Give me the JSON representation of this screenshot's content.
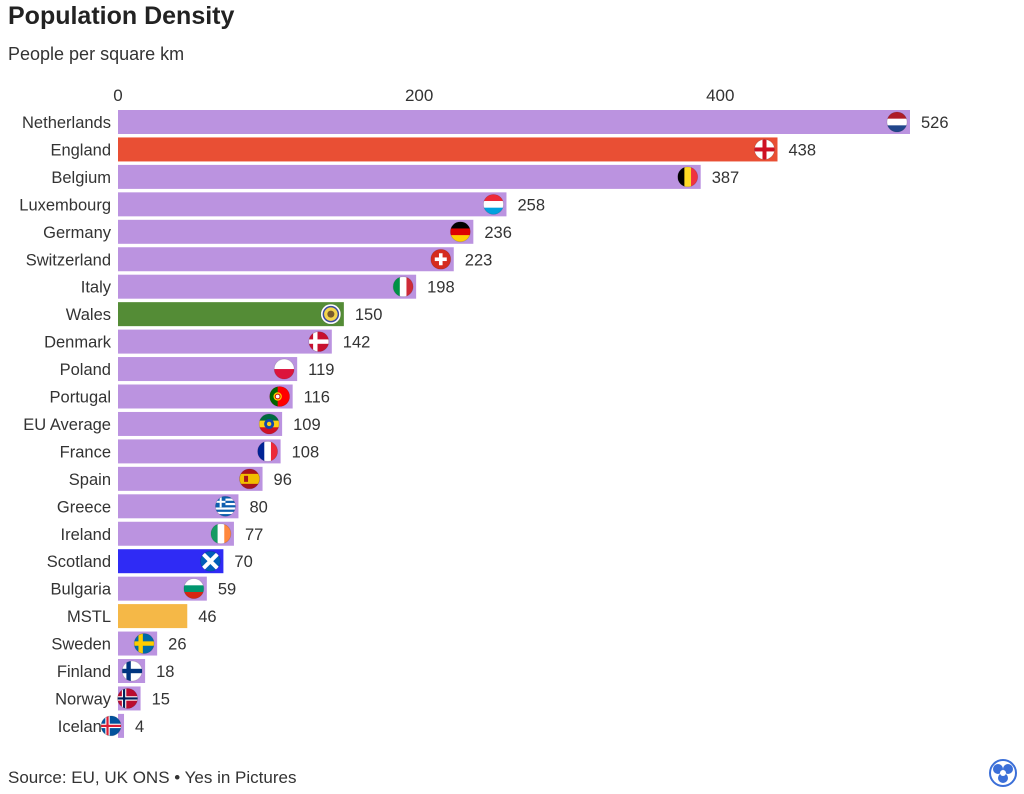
{
  "title": "Population Density",
  "subtitle": "People per square km",
  "footer": "Source: EU, UK ONS • Yes in Pictures",
  "colors": {
    "default": "#bb93e0",
    "England": "#e94f34",
    "Wales": "#548c36",
    "Scotland": "#2f2bf5",
    "MSTL": "#f5b847"
  },
  "chart_data": {
    "type": "bar",
    "orientation": "horizontal",
    "title": "Population Density",
    "subtitle": "People per square km",
    "xlabel": "",
    "ylabel": "",
    "xlim": [
      0,
      526
    ],
    "xticks": [
      0,
      200,
      400
    ],
    "grid": false,
    "categories": [
      "Netherlands",
      "England",
      "Belgium",
      "Luxembourg",
      "Germany",
      "Switzerland",
      "Italy",
      "Wales",
      "Denmark",
      "Poland",
      "Portugal",
      "EU Average",
      "France",
      "Spain",
      "Greece",
      "Ireland",
      "Scotland",
      "Bulgaria",
      "MSTL",
      "Sweden",
      "Finland",
      "Norway",
      "Iceland"
    ],
    "values": [
      526,
      438,
      387,
      258,
      236,
      223,
      198,
      150,
      142,
      119,
      116,
      109,
      108,
      96,
      80,
      77,
      70,
      59,
      46,
      26,
      18,
      15,
      4
    ],
    "flag_icons": [
      "netherlands-flag-icon",
      "england-flag-icon",
      "belgium-flag-icon",
      "luxembourg-flag-icon",
      "germany-flag-icon",
      "switzerland-flag-icon",
      "italy-flag-icon",
      "wales-flag-icon",
      "denmark-flag-icon",
      "poland-flag-icon",
      "portugal-flag-icon",
      "eu-flag-icon",
      "france-flag-icon",
      "spain-flag-icon",
      "greece-flag-icon",
      "ireland-flag-icon",
      "scotland-flag-icon",
      "bulgaria-flag-icon",
      "",
      "sweden-flag-icon",
      "finland-flag-icon",
      "norway-flag-icon",
      "iceland-flag-icon"
    ]
  }
}
